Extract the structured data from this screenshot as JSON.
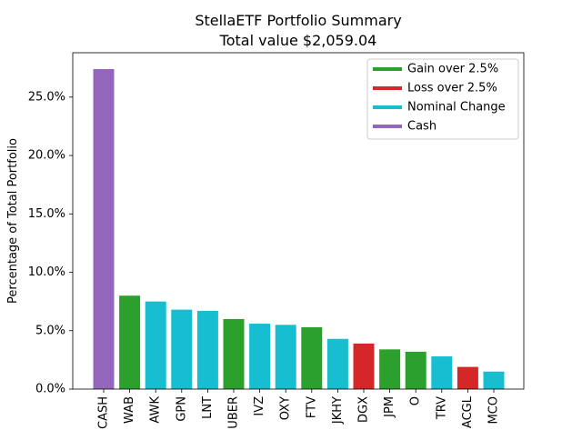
{
  "chart_data": {
    "type": "bar",
    "title": "StellaETF Portfolio Summary",
    "subtitle": "Total value $2,059.04",
    "xlabel": "",
    "ylabel": "Percentage of Total Portfolio",
    "ylim": [
      0,
      0.288
    ],
    "y_ticks": [
      {
        "value": 0.0,
        "label": "0.0%"
      },
      {
        "value": 0.05,
        "label": "5.0%"
      },
      {
        "value": 0.1,
        "label": "10.0%"
      },
      {
        "value": 0.15,
        "label": "15.0%"
      },
      {
        "value": 0.2,
        "label": "20.0%"
      },
      {
        "value": 0.25,
        "label": "25.0%"
      }
    ],
    "grid": false,
    "legend_position": "top-right",
    "categories": [
      "CASH",
      "WAB",
      "AWK",
      "GPN",
      "LNT",
      "UBER",
      "IVZ",
      "OXY",
      "FTV",
      "JKHY",
      "DGX",
      "JPM",
      "O",
      "TRV",
      "ACGL",
      "MCO"
    ],
    "values": [
      0.274,
      0.08,
      0.075,
      0.068,
      0.067,
      0.06,
      0.056,
      0.055,
      0.053,
      0.043,
      0.039,
      0.034,
      0.032,
      0.028,
      0.019,
      0.015
    ],
    "bar_groups": [
      "cash",
      "gain",
      "nominal",
      "nominal",
      "nominal",
      "gain",
      "nominal",
      "nominal",
      "gain",
      "nominal",
      "loss",
      "gain",
      "gain",
      "nominal",
      "loss",
      "nominal"
    ],
    "legend": [
      {
        "key": "gain",
        "label": "Gain over 2.5%",
        "color": "#2ca02c"
      },
      {
        "key": "loss",
        "label": "Loss over 2.5%",
        "color": "#d62728"
      },
      {
        "key": "nominal",
        "label": "Nominal Change",
        "color": "#17becf"
      },
      {
        "key": "cash",
        "label": "Cash",
        "color": "#9467bd"
      }
    ]
  }
}
